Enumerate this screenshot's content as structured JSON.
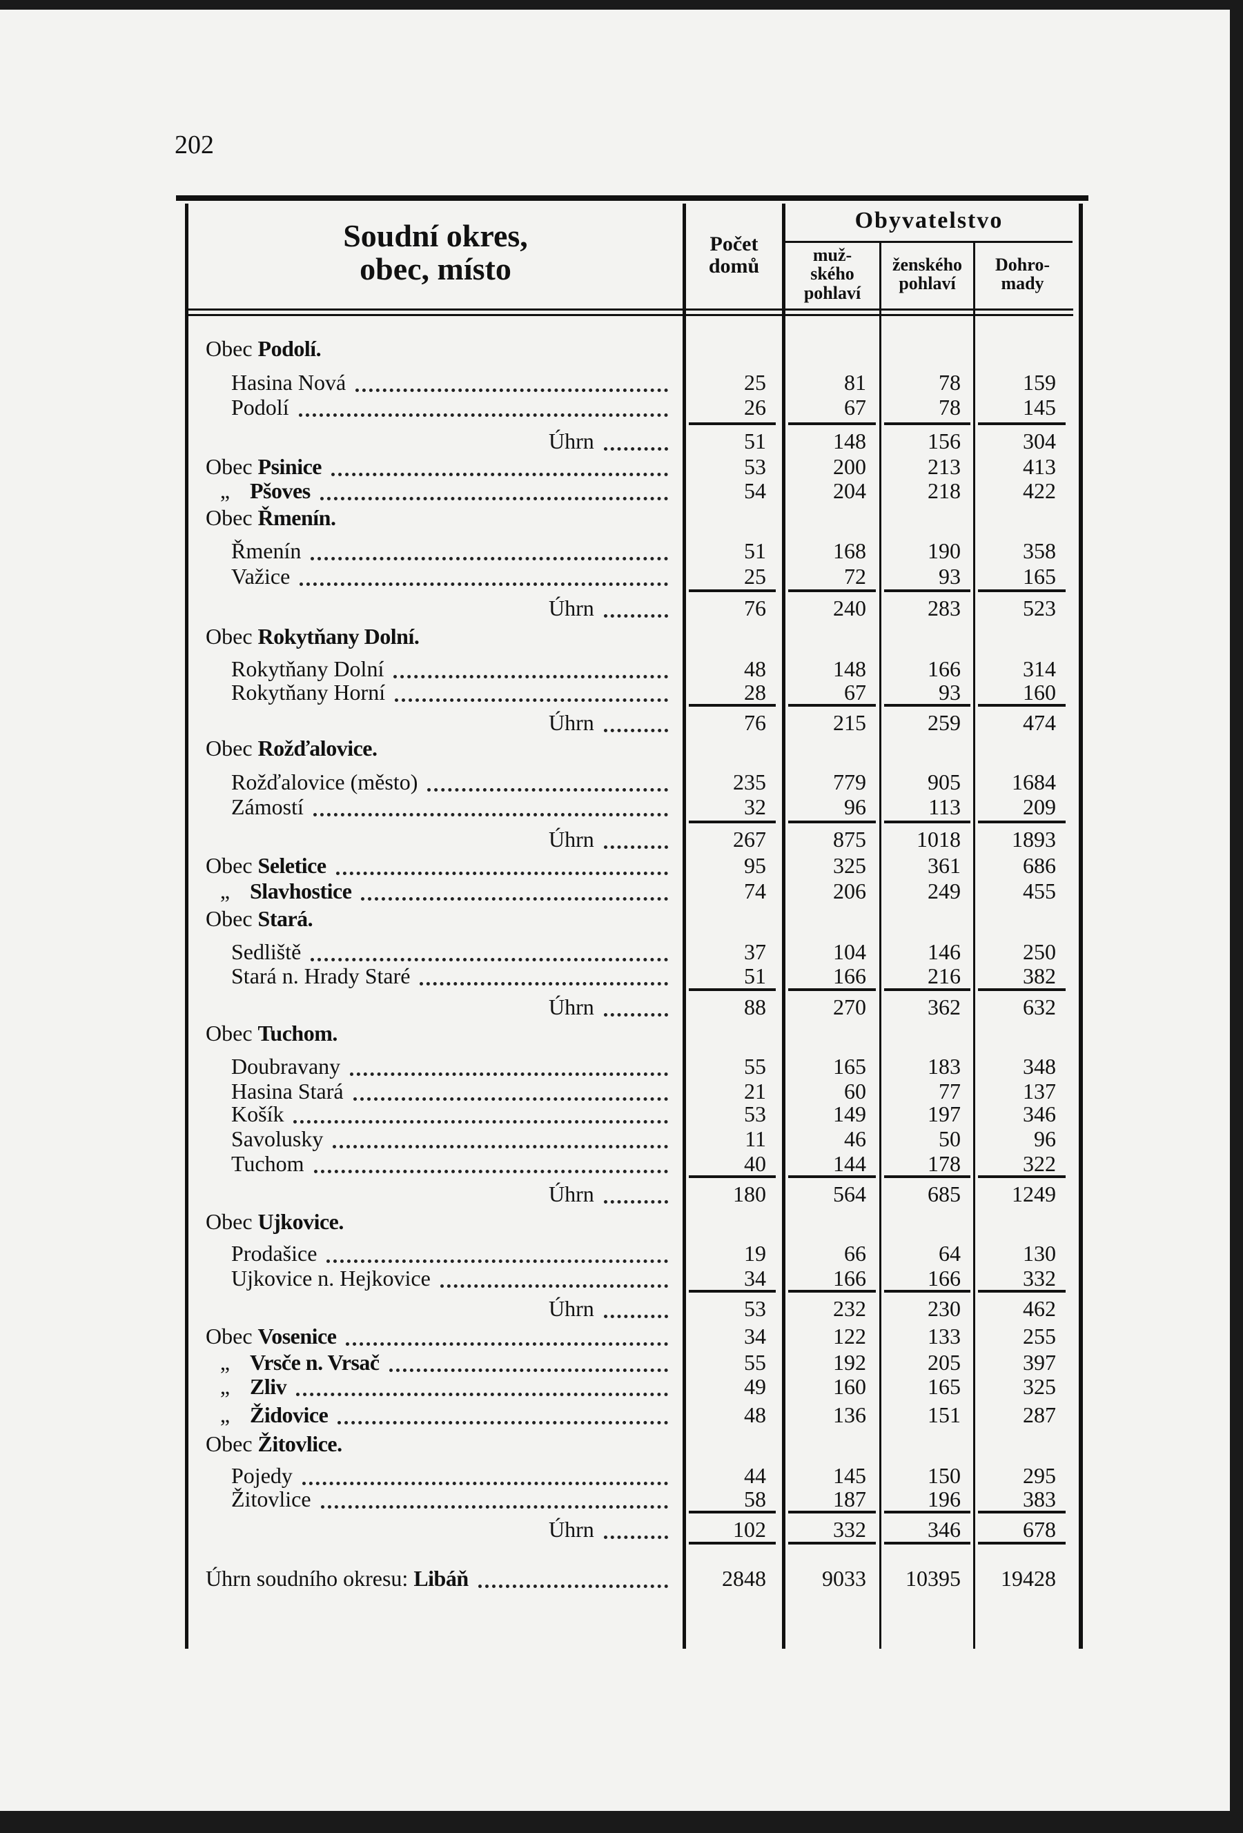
{
  "page_number": "202",
  "header": {
    "col_name": [
      "Soudní okres,",
      "obec, místo"
    ],
    "col_houses": [
      "Počet",
      "domů"
    ],
    "population_group": "Obyvatelstvo",
    "col_male": [
      "muž-",
      "ského",
      "pohlaví"
    ],
    "col_female": [
      "ženského",
      "pohlaví"
    ],
    "col_total": [
      "Dohro-",
      "mady"
    ]
  },
  "rows": [
    {
      "type": "obec",
      "prefix": "Obec",
      "name": "Podolí."
    },
    {
      "type": "item",
      "name": "Hasina Nová",
      "values": [
        "25",
        "81",
        "78",
        "159"
      ]
    },
    {
      "type": "item",
      "name": "Podolí",
      "values": [
        "26",
        "67",
        "78",
        "145"
      ]
    },
    {
      "type": "sum",
      "name": "Úhrn",
      "values": [
        "51",
        "148",
        "156",
        "304"
      ]
    },
    {
      "type": "obecval",
      "prefix": "Obec",
      "name": "Psinice",
      "values": [
        "53",
        "200",
        "213",
        "413"
      ]
    },
    {
      "type": "obecval",
      "prefix": "„",
      "name": "Pšoves",
      "values": [
        "54",
        "204",
        "218",
        "422"
      ]
    },
    {
      "type": "obec",
      "prefix": "Obec",
      "name": "Řmenín."
    },
    {
      "type": "item",
      "name": "Řmenín",
      "values": [
        "51",
        "168",
        "190",
        "358"
      ]
    },
    {
      "type": "item",
      "name": "Važice",
      "values": [
        "25",
        "72",
        "93",
        "165"
      ]
    },
    {
      "type": "sum",
      "name": "Úhrn",
      "values": [
        "76",
        "240",
        "283",
        "523"
      ]
    },
    {
      "type": "obec",
      "prefix": "Obec",
      "name": "Rokytňany Dolní."
    },
    {
      "type": "item",
      "name": "Rokytňany Dolní",
      "values": [
        "48",
        "148",
        "166",
        "314"
      ]
    },
    {
      "type": "item",
      "name": "Rokytňany Horní",
      "values": [
        "28",
        "67",
        "93",
        "160"
      ]
    },
    {
      "type": "sum",
      "name": "Úhrn",
      "values": [
        "76",
        "215",
        "259",
        "474"
      ]
    },
    {
      "type": "obec",
      "prefix": "Obec",
      "name": "Rožďalovice."
    },
    {
      "type": "item",
      "name": "Rožďalovice (město)",
      "values": [
        "235",
        "779",
        "905",
        "1684"
      ]
    },
    {
      "type": "item",
      "name": "Zámostí",
      "values": [
        "32",
        "96",
        "113",
        "209"
      ]
    },
    {
      "type": "sum",
      "name": "Úhrn",
      "values": [
        "267",
        "875",
        "1018",
        "1893"
      ]
    },
    {
      "type": "obecval",
      "prefix": "Obec",
      "name": "Seletice",
      "values": [
        "95",
        "325",
        "361",
        "686"
      ]
    },
    {
      "type": "obecval",
      "prefix": "„",
      "name": "Slavhostice",
      "values": [
        "74",
        "206",
        "249",
        "455"
      ]
    },
    {
      "type": "obec",
      "prefix": "Obec",
      "name": "Stará."
    },
    {
      "type": "item",
      "name": "Sedliště",
      "values": [
        "37",
        "104",
        "146",
        "250"
      ]
    },
    {
      "type": "item",
      "name": "Stará n. Hrady Staré",
      "values": [
        "51",
        "166",
        "216",
        "382"
      ]
    },
    {
      "type": "sum",
      "name": "Úhrn",
      "values": [
        "88",
        "270",
        "362",
        "632"
      ]
    },
    {
      "type": "obec",
      "prefix": "Obec",
      "name": "Tuchom."
    },
    {
      "type": "item",
      "name": "Doubravany",
      "values": [
        "55",
        "165",
        "183",
        "348"
      ]
    },
    {
      "type": "item",
      "name": "Hasina Stará",
      "values": [
        "21",
        "60",
        "77",
        "137"
      ]
    },
    {
      "type": "item",
      "name": "Košík",
      "values": [
        "53",
        "149",
        "197",
        "346"
      ]
    },
    {
      "type": "item",
      "name": "Savolusky",
      "values": [
        "11",
        "46",
        "50",
        "96"
      ]
    },
    {
      "type": "item",
      "name": "Tuchom",
      "values": [
        "40",
        "144",
        "178",
        "322"
      ]
    },
    {
      "type": "sum",
      "name": "Úhrn",
      "values": [
        "180",
        "564",
        "685",
        "1249"
      ]
    },
    {
      "type": "obec",
      "prefix": "Obec",
      "name": "Ujkovice."
    },
    {
      "type": "item",
      "name": "Prodašice",
      "values": [
        "19",
        "66",
        "64",
        "130"
      ]
    },
    {
      "type": "item",
      "name": "Ujkovice n. Hejkovice",
      "values": [
        "34",
        "166",
        "166",
        "332"
      ]
    },
    {
      "type": "sum",
      "name": "Úhrn",
      "values": [
        "53",
        "232",
        "230",
        "462"
      ]
    },
    {
      "type": "obecval",
      "prefix": "Obec",
      "name": "Vosenice",
      "values": [
        "34",
        "122",
        "133",
        "255"
      ]
    },
    {
      "type": "obecval",
      "prefix": "„",
      "name": "Vrsče n. Vrsač",
      "values": [
        "55",
        "192",
        "205",
        "397"
      ]
    },
    {
      "type": "obecval",
      "prefix": "„",
      "name": "Zliv",
      "values": [
        "49",
        "160",
        "165",
        "325"
      ]
    },
    {
      "type": "obecval",
      "prefix": "„",
      "name": "Židovice",
      "values": [
        "48",
        "136",
        "151",
        "287"
      ]
    },
    {
      "type": "obec",
      "prefix": "Obec",
      "name": "Žitovlice."
    },
    {
      "type": "item",
      "name": "Pojedy",
      "values": [
        "44",
        "145",
        "150",
        "295"
      ]
    },
    {
      "type": "item",
      "name": "Žitovlice",
      "values": [
        "58",
        "187",
        "196",
        "383"
      ]
    },
    {
      "type": "sum",
      "name": "Úhrn",
      "values": [
        "102",
        "332",
        "346",
        "678"
      ]
    },
    {
      "type": "total",
      "prefix": "Úhrn soudního okresu:",
      "name": "Libáň",
      "values": [
        "2848",
        "9033",
        "10395",
        "19428"
      ]
    }
  ]
}
